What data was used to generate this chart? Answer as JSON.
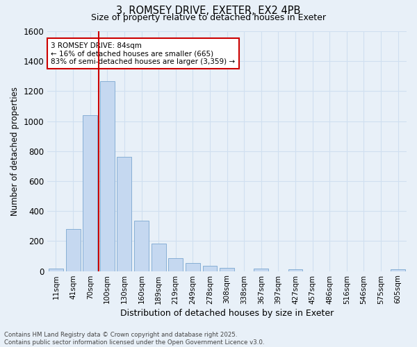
{
  "title_line1": "3, ROMSEY DRIVE, EXETER, EX2 4PB",
  "title_line2": "Size of property relative to detached houses in Exeter",
  "xlabel": "Distribution of detached houses by size in Exeter",
  "ylabel": "Number of detached properties",
  "bar_labels": [
    "11sqm",
    "41sqm",
    "70sqm",
    "100sqm",
    "130sqm",
    "160sqm",
    "189sqm",
    "219sqm",
    "249sqm",
    "278sqm",
    "308sqm",
    "338sqm",
    "367sqm",
    "397sqm",
    "427sqm",
    "457sqm",
    "486sqm",
    "516sqm",
    "546sqm",
    "575sqm",
    "605sqm"
  ],
  "bar_values": [
    15,
    280,
    1040,
    1265,
    760,
    335,
    185,
    85,
    55,
    35,
    22,
    0,
    18,
    0,
    12,
    0,
    0,
    0,
    0,
    0,
    12
  ],
  "bar_color": "#c5d8f0",
  "bar_edge_color": "#7ba7d0",
  "grid_color": "#d0dff0",
  "background_color": "#e8f0f8",
  "vline_color": "#cc0000",
  "vline_x_bar_index": 2,
  "annotation_text_line1": "3 ROMSEY DRIVE: 84sqm",
  "annotation_text_line2": "← 16% of detached houses are smaller (665)",
  "annotation_text_line3": "83% of semi-detached houses are larger (3,359) →",
  "annotation_box_color": "#ffffff",
  "annotation_box_edge": "#cc0000",
  "footnote_line1": "Contains HM Land Registry data © Crown copyright and database right 2025.",
  "footnote_line2": "Contains public sector information licensed under the Open Government Licence v3.0.",
  "ylim": [
    0,
    1600
  ],
  "yticks": [
    0,
    200,
    400,
    600,
    800,
    1000,
    1200,
    1400,
    1600
  ]
}
